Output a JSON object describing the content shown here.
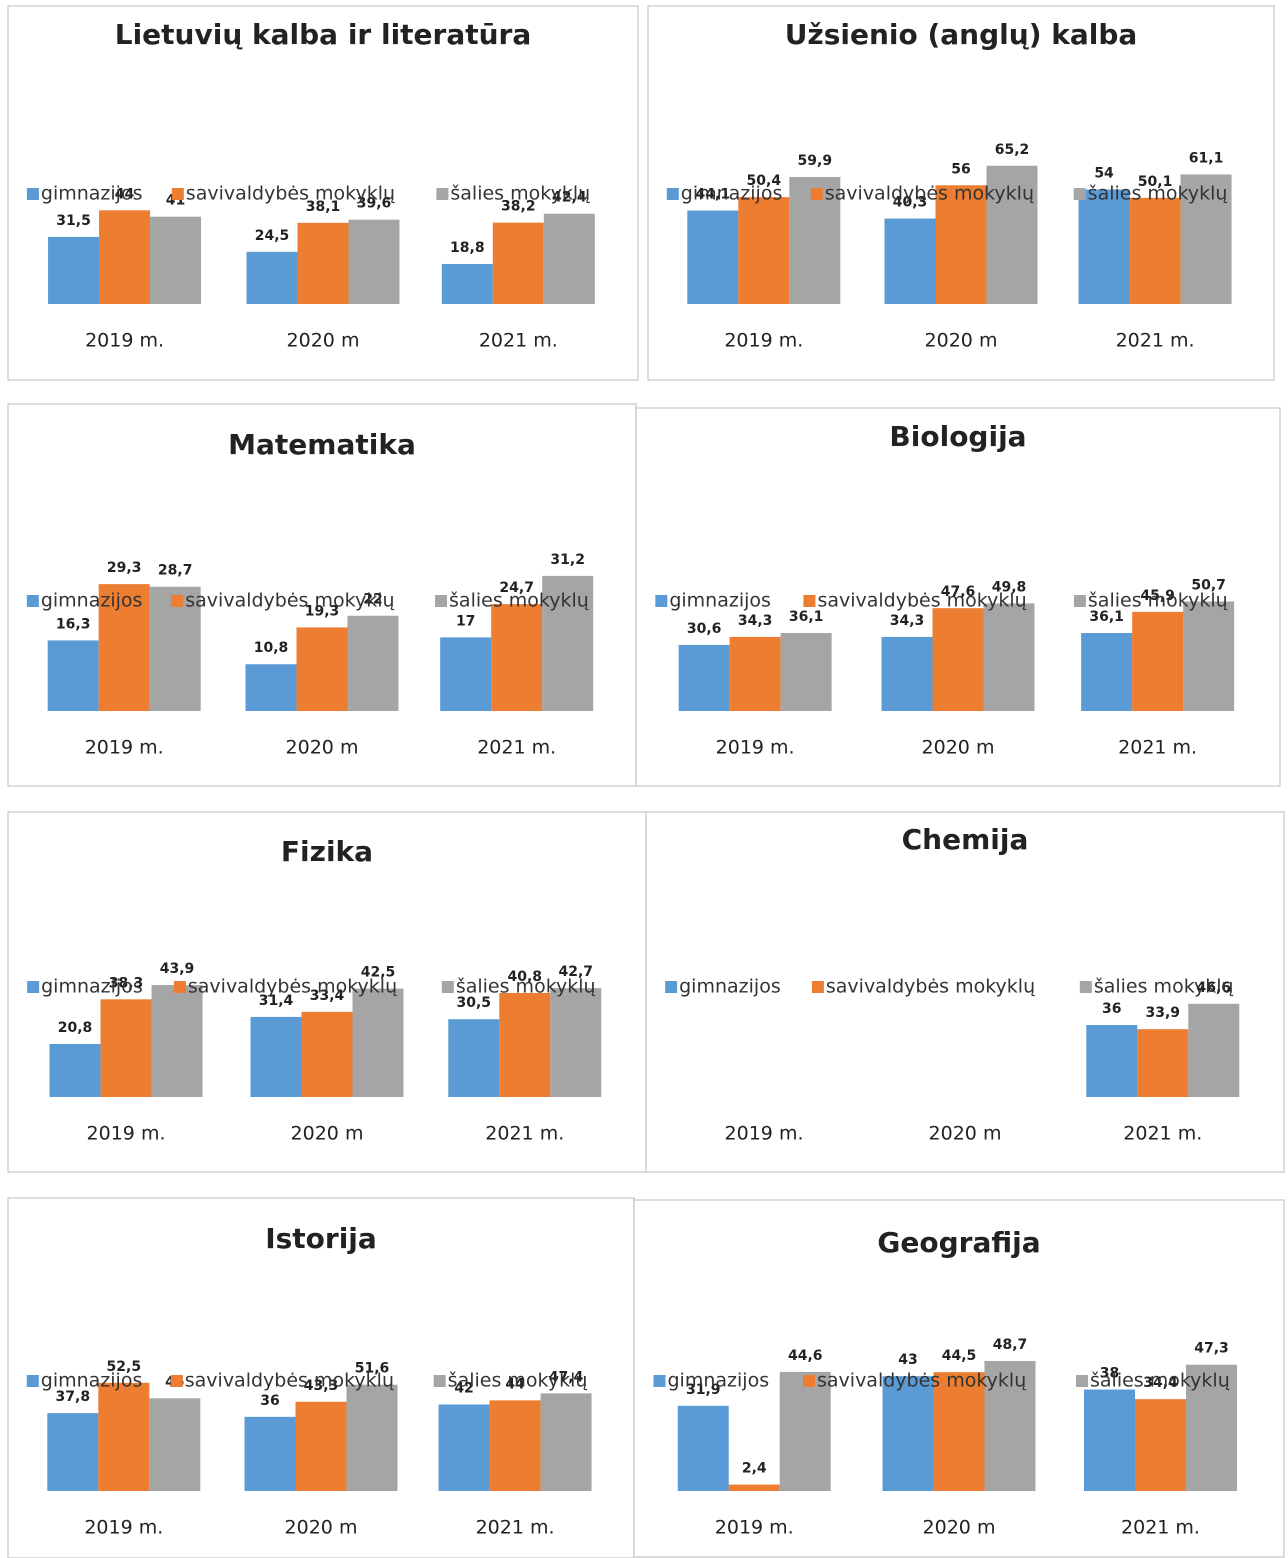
{
  "chart_data": [
    {
      "type": "bar",
      "title": "Lietuvių kalba ir literatūra",
      "categories": [
        "2019 m.",
        "2020 m",
        "2021 m."
      ],
      "series": [
        {
          "name": "gimnazijos",
          "color": "#5b9bd5",
          "values": [
            31.5,
            24.5,
            18.8
          ],
          "value_labels": [
            "31,5",
            "24,5",
            "18,8"
          ]
        },
        {
          "name": "savivaldybės mokyklų",
          "color": "#ed7d31",
          "values": [
            44,
            38.1,
            38.2
          ],
          "value_labels": [
            "44",
            "38,1",
            "38,2"
          ]
        },
        {
          "name": "šalies mokyklų",
          "color": "#a5a5a5",
          "values": [
            41,
            39.6,
            42.4
          ],
          "value_labels": [
            "41",
            "39,6",
            "42,4"
          ]
        }
      ]
    },
    {
      "type": "bar",
      "title": "Užsienio (anglų) kalba",
      "categories": [
        "2019 m.",
        "2020 m",
        "2021 m."
      ],
      "series": [
        {
          "name": "gimnazijos",
          "color": "#5b9bd5",
          "values": [
            44.1,
            40.3,
            54
          ],
          "value_labels": [
            "44,1",
            "40,3",
            "54"
          ]
        },
        {
          "name": "savivaldybės mokyklų",
          "color": "#ed7d31",
          "values": [
            50.4,
            56,
            50.1
          ],
          "value_labels": [
            "50,4",
            "56",
            "50,1"
          ]
        },
        {
          "name": "šalies mokyklų",
          "color": "#a5a5a5",
          "values": [
            59.9,
            65.2,
            61.1
          ],
          "value_labels": [
            "59,9",
            "65,2",
            "61,1"
          ]
        }
      ]
    },
    {
      "type": "bar",
      "title": "Matematika",
      "categories": [
        "2019 m.",
        "2020 m",
        "2021 m."
      ],
      "series": [
        {
          "name": "gimnazijos",
          "color": "#5b9bd5",
          "values": [
            16.3,
            10.8,
            17
          ],
          "value_labels": [
            "16,3",
            "10,8",
            "17"
          ]
        },
        {
          "name": "savivaldybės mokyklų",
          "color": "#ed7d31",
          "values": [
            29.3,
            19.3,
            24.7
          ],
          "value_labels": [
            "29,3",
            "19,3",
            "24,7"
          ]
        },
        {
          "name": "šalies mokyklų",
          "color": "#a5a5a5",
          "values": [
            28.7,
            22,
            31.2
          ],
          "value_labels": [
            "28,7",
            "22",
            "31,2"
          ]
        }
      ]
    },
    {
      "type": "bar",
      "title": "Biologija",
      "categories": [
        "2019 m.",
        "2020 m",
        "2021 m."
      ],
      "series": [
        {
          "name": "gimnazijos",
          "color": "#5b9bd5",
          "values": [
            30.6,
            34.3,
            36.1
          ],
          "value_labels": [
            "30,6",
            "34,3",
            "36,1"
          ]
        },
        {
          "name": "savivaldybės mokyklų",
          "color": "#ed7d31",
          "values": [
            34.3,
            47.6,
            45.9
          ],
          "value_labels": [
            "34,3",
            "47,6",
            "45,9"
          ]
        },
        {
          "name": "šalies mokyklų",
          "color": "#a5a5a5",
          "values": [
            36.1,
            49.8,
            50.7
          ],
          "value_labels": [
            "36,1",
            "49,8",
            "50,7"
          ]
        }
      ]
    },
    {
      "type": "bar",
      "title": "Fizika",
      "categories": [
        "2019 m.",
        "2020 m",
        "2021 m."
      ],
      "series": [
        {
          "name": "gimnazijos",
          "color": "#5b9bd5",
          "values": [
            20.8,
            31.4,
            30.5
          ],
          "value_labels": [
            "20,8",
            "31,4",
            "30,5"
          ]
        },
        {
          "name": "savivaldybės mokyklų",
          "color": "#ed7d31",
          "values": [
            38.3,
            33.4,
            40.8
          ],
          "value_labels": [
            "38,3",
            "33,4",
            "40,8"
          ]
        },
        {
          "name": "šalies mokyklų",
          "color": "#a5a5a5",
          "values": [
            43.9,
            42.5,
            42.7
          ],
          "value_labels": [
            "43,9",
            "42,5",
            "42,7"
          ]
        }
      ]
    },
    {
      "type": "bar",
      "title": "Chemija",
      "categories": [
        "2019 m.",
        "2020 m",
        "2021 m."
      ],
      "series": [
        {
          "name": "gimnazijos",
          "color": "#5b9bd5",
          "values": [
            null,
            null,
            36
          ],
          "value_labels": [
            null,
            null,
            "36"
          ]
        },
        {
          "name": "savivaldybės mokyklų",
          "color": "#ed7d31",
          "values": [
            null,
            null,
            33.9
          ],
          "value_labels": [
            null,
            null,
            "33,9"
          ]
        },
        {
          "name": "šalies mokyklų",
          "color": "#a5a5a5",
          "values": [
            null,
            null,
            46.6
          ],
          "value_labels": [
            null,
            null,
            "46,6"
          ]
        }
      ]
    },
    {
      "type": "bar",
      "title": "Istorija",
      "categories": [
        "2019 m.",
        "2020 m",
        "2021 m."
      ],
      "series": [
        {
          "name": "gimnazijos",
          "color": "#5b9bd5",
          "values": [
            37.8,
            36,
            42
          ],
          "value_labels": [
            "37,8",
            "36",
            "42"
          ]
        },
        {
          "name": "savivaldybės mokyklų",
          "color": "#ed7d31",
          "values": [
            52.5,
            43.3,
            44
          ],
          "value_labels": [
            "52,5",
            "43,3",
            "44"
          ]
        },
        {
          "name": "šalies mokyklų",
          "color": "#a5a5a5",
          "values": [
            45,
            51.6,
            47.4
          ],
          "value_labels": [
            "45",
            "51,6",
            "47,4"
          ]
        }
      ]
    },
    {
      "type": "bar",
      "title": "Geografija",
      "categories": [
        "2019 m.",
        "2020 m",
        "2021 m."
      ],
      "series": [
        {
          "name": "gimnazijos",
          "color": "#5b9bd5",
          "values": [
            31.9,
            43,
            38
          ],
          "value_labels": [
            "31,9",
            "43",
            "38"
          ]
        },
        {
          "name": "savivaldybės mokyklų",
          "color": "#ed7d31",
          "values": [
            2.4,
            44.5,
            34.4
          ],
          "value_labels": [
            "2,4",
            "44,5",
            "34,4"
          ]
        },
        {
          "name": "šalies mokyklų",
          "color": "#a5a5a5",
          "values": [
            44.6,
            48.7,
            47.3
          ],
          "value_labels": [
            "44,6",
            "48,7",
            "47,3"
          ]
        }
      ]
    }
  ]
}
